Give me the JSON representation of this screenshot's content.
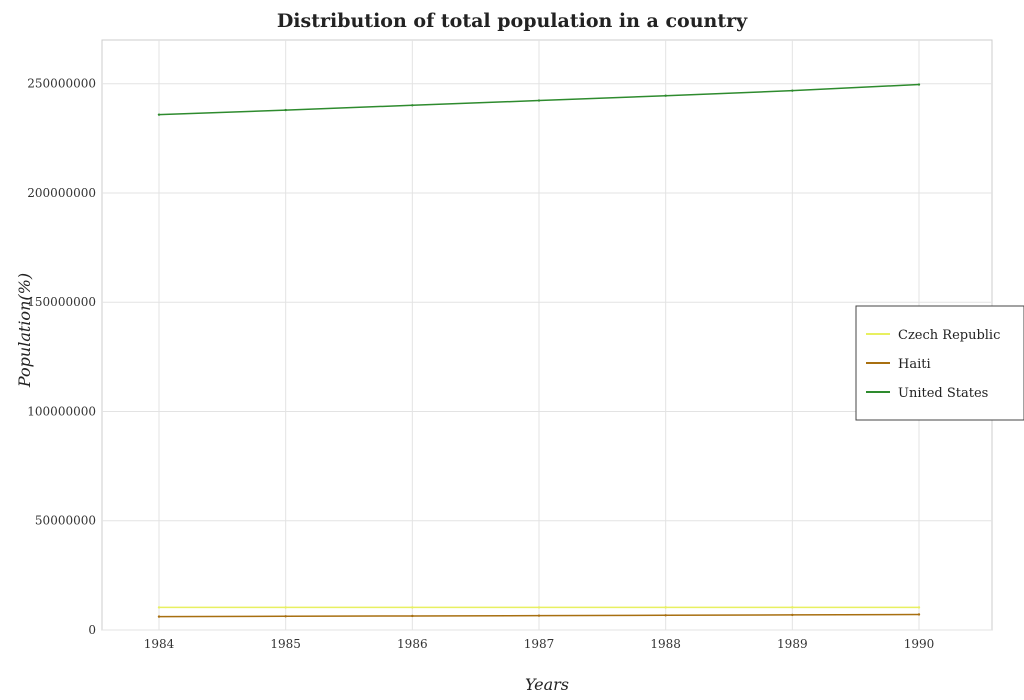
{
  "chart_data": {
    "type": "line",
    "title": "Distribution of total population in a country",
    "xlabel": "Years",
    "ylabel": "Population(%)",
    "x": [
      "1984",
      "1985",
      "1986",
      "1987",
      "1988",
      "1989",
      "1990"
    ],
    "ylim": [
      0,
      270000000
    ],
    "yticks": [
      0,
      50000000,
      100000000,
      150000000,
      200000000,
      250000000
    ],
    "ytick_labels": [
      "0",
      "50000000",
      "100000000",
      "150000000",
      "200000000",
      "250000000"
    ],
    "grid": true,
    "legend_position": "right",
    "series": [
      {
        "name": "Czech Republic",
        "color": "#e8f060",
        "values": [
          10330000,
          10337000,
          10341000,
          10348000,
          10356000,
          10362000,
          10333000
        ]
      },
      {
        "name": "Haiti",
        "color": "#a86f10",
        "values": [
          6120000,
          6270000,
          6420000,
          6570000,
          6730000,
          6900000,
          7100000
        ]
      },
      {
        "name": "United States",
        "color": "#2e8b2e",
        "values": [
          235825000,
          237924000,
          240133000,
          242289000,
          244499000,
          246819000,
          249623000
        ]
      }
    ]
  }
}
